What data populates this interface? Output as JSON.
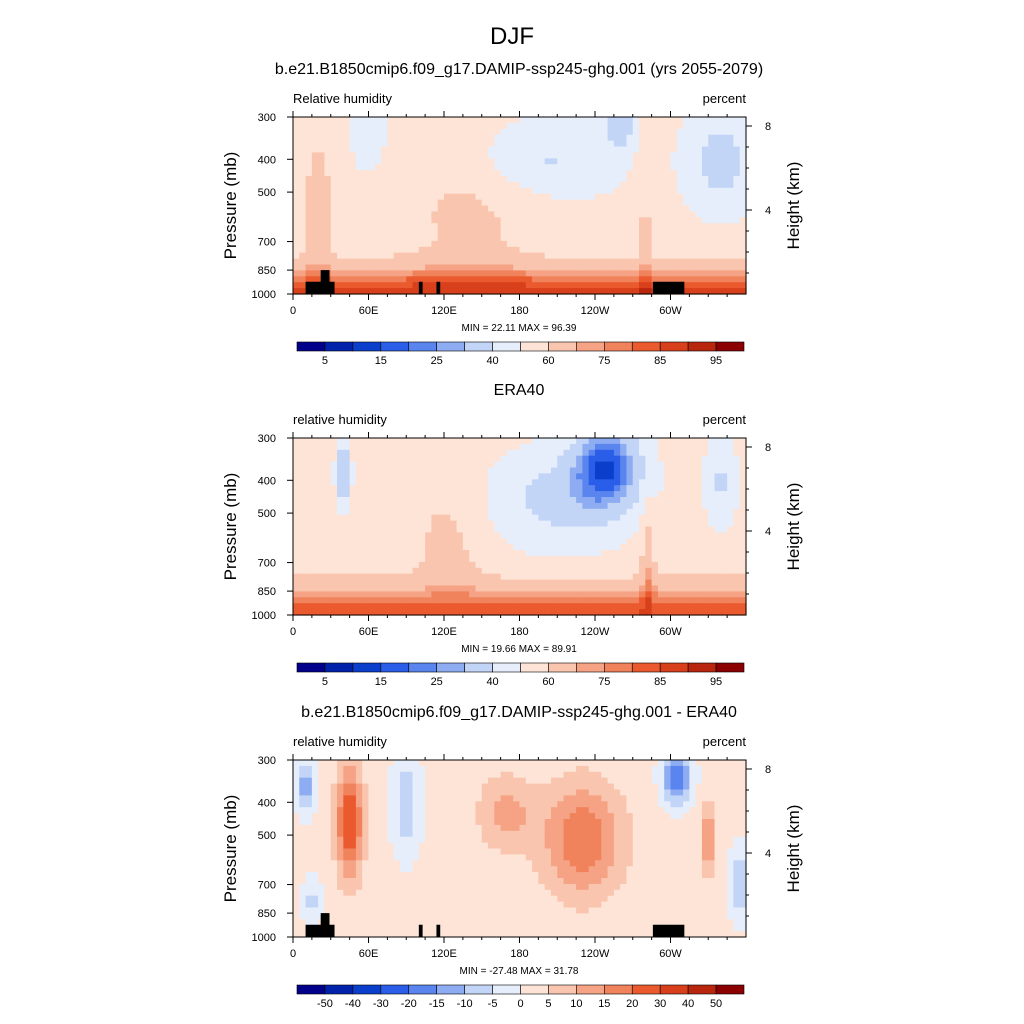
{
  "figure": {
    "title": "DJF"
  },
  "chart_data": [
    {
      "type": "heatmap",
      "title": "b.e21.B1850cmip6.f09_g17.DAMIP-ssp245-ghg.001 (yrs 2055-2079)",
      "left_label": "Relative humidity",
      "right_label": "percent",
      "ylabel": "Pressure (mb)",
      "y2label": "Height (km)",
      "x_ticks": [
        "0",
        "60E",
        "120E",
        "180",
        "120W",
        "60W"
      ],
      "x_tick_lon": [
        0,
        60,
        120,
        180,
        240,
        300
      ],
      "xlim": [
        0,
        360
      ],
      "y_ticks": [
        "300",
        "400",
        "500",
        "700",
        "850",
        "1000"
      ],
      "y_tick_p": [
        300,
        400,
        500,
        700,
        850,
        1000
      ],
      "ylim": [
        1000,
        300
      ],
      "y_scale": "log",
      "y2_ticks": [
        "8",
        "4"
      ],
      "y2_tick_km": [
        8,
        4
      ],
      "stats": "MIN =  22.11  MAX =  96.39",
      "min": 22.11,
      "max": 96.39,
      "colorbar": {
        "labels": [
          "5",
          "15",
          "25",
          "40",
          "60",
          "75",
          "85",
          "95"
        ],
        "colors": [
          "#00008b",
          "#0022aa",
          "#0a3fcc",
          "#2a5de8",
          "#5a84ee",
          "#8eacf2",
          "#c2d5f7",
          "#e6eefc",
          "#fde4d6",
          "#f9c5ae",
          "#f5a384",
          "#f0825c",
          "#ea5a2e",
          "#d8401c",
          "#b8260d",
          "#8b0000"
        ]
      }
    },
    {
      "type": "heatmap",
      "title": "ERA40",
      "left_label": "relative humidity",
      "right_label": "percent",
      "ylabel": "Pressure (mb)",
      "y2label": "Height (km)",
      "x_ticks": [
        "0",
        "60E",
        "120E",
        "180",
        "120W",
        "60W"
      ],
      "x_tick_lon": [
        0,
        60,
        120,
        180,
        240,
        300
      ],
      "xlim": [
        0,
        360
      ],
      "y_ticks": [
        "300",
        "400",
        "500",
        "700",
        "850",
        "1000"
      ],
      "y_tick_p": [
        300,
        400,
        500,
        700,
        850,
        1000
      ],
      "ylim": [
        1000,
        300
      ],
      "y_scale": "log",
      "y2_ticks": [
        "8",
        "4"
      ],
      "y2_tick_km": [
        8,
        4
      ],
      "stats": "MIN =  19.66  MAX =  89.91",
      "min": 19.66,
      "max": 89.91,
      "colorbar": {
        "labels": [
          "5",
          "15",
          "25",
          "40",
          "60",
          "75",
          "85",
          "95"
        ],
        "colors": [
          "#00008b",
          "#0022aa",
          "#0a3fcc",
          "#2a5de8",
          "#5a84ee",
          "#8eacf2",
          "#c2d5f7",
          "#e6eefc",
          "#fde4d6",
          "#f9c5ae",
          "#f5a384",
          "#f0825c",
          "#ea5a2e",
          "#d8401c",
          "#b8260d",
          "#8b0000"
        ]
      }
    },
    {
      "type": "heatmap",
      "title": "b.e21.B1850cmip6.f09_g17.DAMIP-ssp245-ghg.001 - ERA40",
      "left_label": "relative humidity",
      "right_label": "percent",
      "ylabel": "Pressure (mb)",
      "y2label": "Height (km)",
      "x_ticks": [
        "0",
        "60E",
        "120E",
        "180",
        "120W",
        "60W"
      ],
      "x_tick_lon": [
        0,
        60,
        120,
        180,
        240,
        300
      ],
      "xlim": [
        0,
        360
      ],
      "y_ticks": [
        "300",
        "400",
        "500",
        "700",
        "850",
        "1000"
      ],
      "y_tick_p": [
        300,
        400,
        500,
        700,
        850,
        1000
      ],
      "ylim": [
        1000,
        300
      ],
      "y_scale": "log",
      "y2_ticks": [
        "8",
        "4"
      ],
      "y2_tick_km": [
        8,
        4
      ],
      "stats": "MIN = -27.48  MAX =  31.78",
      "min": -27.48,
      "max": 31.78,
      "colorbar": {
        "labels": [
          "-50",
          "-40",
          "-30",
          "-20",
          "-15",
          "-10",
          "-5",
          "0",
          "5",
          "10",
          "15",
          "20",
          "30",
          "40",
          "50"
        ],
        "colors": [
          "#00008b",
          "#0022aa",
          "#0a3fcc",
          "#2a5de8",
          "#5a84ee",
          "#8eacf2",
          "#c2d5f7",
          "#e6eefc",
          "#fde4d6",
          "#f9c5ae",
          "#f5a384",
          "#f0825c",
          "#ea5a2e",
          "#d8401c",
          "#b8260d",
          "#8b0000"
        ]
      }
    }
  ]
}
